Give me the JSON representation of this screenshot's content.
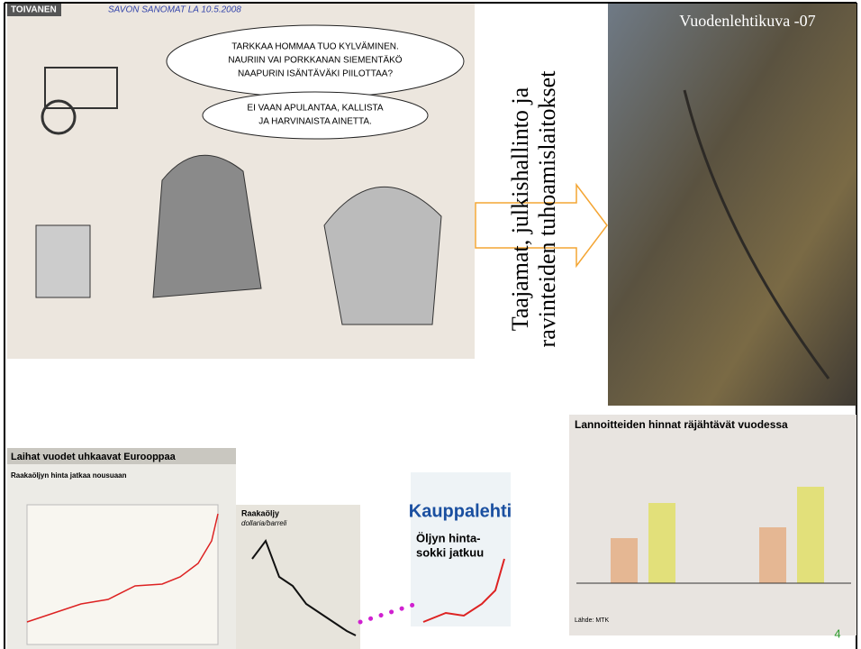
{
  "slide": {
    "vertical_text": [
      "Taajamat, julkishallinto ja",
      "ravinteiden tuhoamislaitokset"
    ],
    "photo_caption": "Vuodenlehtikuva -07",
    "page_number": "4",
    "cartoon": {
      "header": "TOIVANEN",
      "note": "SAVON SANOMAT LA 10.5.2008",
      "bubble_1": [
        "TARKKAA HOMMAA TUO KYLVÄMINEN.",
        "NAURIIN VAI PORKKANAN SIEMENTÄKÖ",
        "NAAPURIN ISÄNTÄVÄKI PIILOTTAA?"
      ],
      "bubble_2": [
        "EI VAAN APULANTAA, KALLISTA",
        "JA HARVINAISTA AINETTA."
      ]
    },
    "fertilizer_clipping": {
      "title": "Lannoitteiden hinnat räjähtävät vuodessa",
      "source": "Lähde: MTK"
    },
    "europe_clipping": {
      "title": "Laihat vuodet uhkaavat Eurooppaa",
      "subtitle": "Raakaöljyn hinta jatkaa nousuaan"
    },
    "oil_clipping": {
      "title": "Raakaöljy",
      "subtitle": "dollaria/barreli"
    },
    "newspaper": {
      "masthead": "Kauppalehti",
      "headline": [
        "Öljyn hinta-",
        "sokki jatkuu"
      ]
    }
  }
}
